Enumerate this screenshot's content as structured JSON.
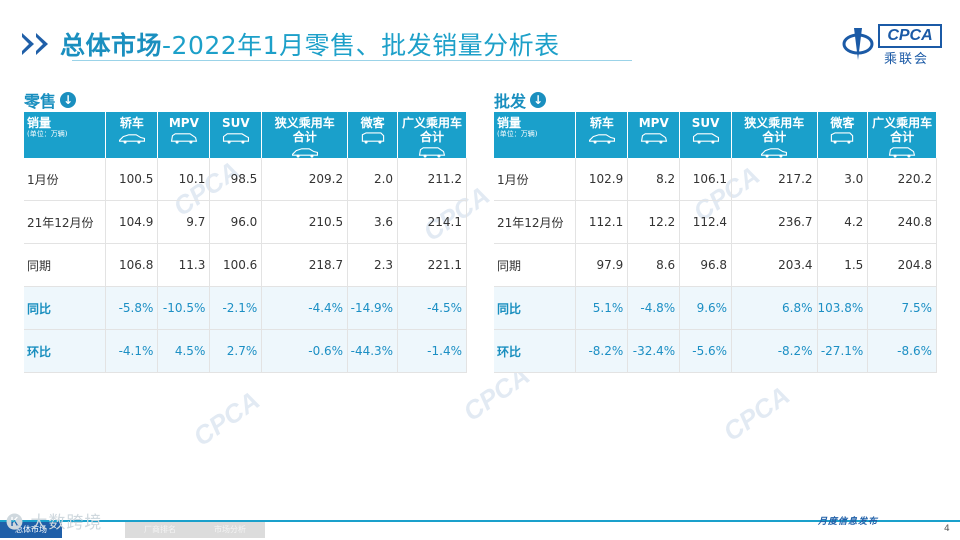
{
  "header": {
    "title_bold": "总体市场",
    "title_rest": "-2022年1月零售、批发销量分析表"
  },
  "logo": {
    "text": "CPCA",
    "cn": "乘联会"
  },
  "columns": [
    "轿车",
    "MPV",
    "SUV",
    "狭义乘用车\n合计",
    "微客",
    "广义乘用车\n合计"
  ],
  "first_header": {
    "label": "销量",
    "unit": "(单位：万辆)"
  },
  "retail": {
    "label": "零售",
    "rows": [
      {
        "label": "1月份",
        "values": [
          "100.5",
          "10.1",
          "98.5",
          "209.2",
          "2.0",
          "211.2"
        ]
      },
      {
        "label": "21年12月份",
        "values": [
          "104.9",
          "9.7",
          "96.0",
          "210.5",
          "3.6",
          "214.1"
        ]
      },
      {
        "label": "同期",
        "values": [
          "106.8",
          "11.3",
          "100.6",
          "218.7",
          "2.3",
          "221.1"
        ]
      },
      {
        "label": "同比",
        "values": [
          "-5.8%",
          "-10.5%",
          "-2.1%",
          "-4.4%",
          "-14.9%",
          "-4.5%"
        ]
      },
      {
        "label": "环比",
        "values": [
          "-4.1%",
          "4.5%",
          "2.7%",
          "-0.6%",
          "-44.3%",
          "-1.4%"
        ]
      }
    ]
  },
  "wholesale": {
    "label": "批发",
    "rows": [
      {
        "label": "1月份",
        "values": [
          "102.9",
          "8.2",
          "106.1",
          "217.2",
          "3.0",
          "220.2"
        ]
      },
      {
        "label": "21年12月份",
        "values": [
          "112.1",
          "12.2",
          "112.4",
          "236.7",
          "4.2",
          "240.8"
        ]
      },
      {
        "label": "同期",
        "values": [
          "97.9",
          "8.6",
          "96.8",
          "203.4",
          "1.5",
          "204.8"
        ]
      },
      {
        "label": "同比",
        "values": [
          "5.1%",
          "-4.8%",
          "9.6%",
          "6.8%",
          "103.8%",
          "7.5%"
        ]
      },
      {
        "label": "环比",
        "values": [
          "-8.2%",
          "-32.4%",
          "-5.6%",
          "-8.2%",
          "-27.1%",
          "-8.6%"
        ]
      }
    ]
  },
  "footer": {
    "tabs": [
      "总体市场",
      "厂商排名",
      "市场分析"
    ],
    "overlay_watermark": "大数跨境",
    "right_text": "月度信息发布",
    "page": "4"
  },
  "colors": {
    "accent": "#1aa0cb",
    "brand": "#1f5fa8",
    "pct_row_bg": "#eef7fc"
  }
}
